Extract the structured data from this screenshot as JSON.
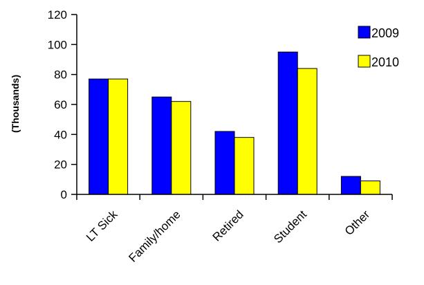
{
  "chart_data": {
    "type": "bar",
    "title": "",
    "xlabel": "",
    "ylabel": "(Thousands)",
    "ylim": [
      0,
      120
    ],
    "yticks": [
      0,
      20,
      40,
      60,
      80,
      100,
      120
    ],
    "grid": false,
    "legend_position": "top-right",
    "categories": [
      "LT Sick",
      "Family/home",
      "Retired",
      "Student",
      "Other"
    ],
    "series": [
      {
        "name": "2009",
        "color": "#0000FF",
        "values": [
          77,
          65,
          42,
          95,
          12
        ]
      },
      {
        "name": "2010",
        "color": "#FFFF00",
        "values": [
          77,
          62,
          38,
          84,
          9
        ]
      }
    ]
  }
}
